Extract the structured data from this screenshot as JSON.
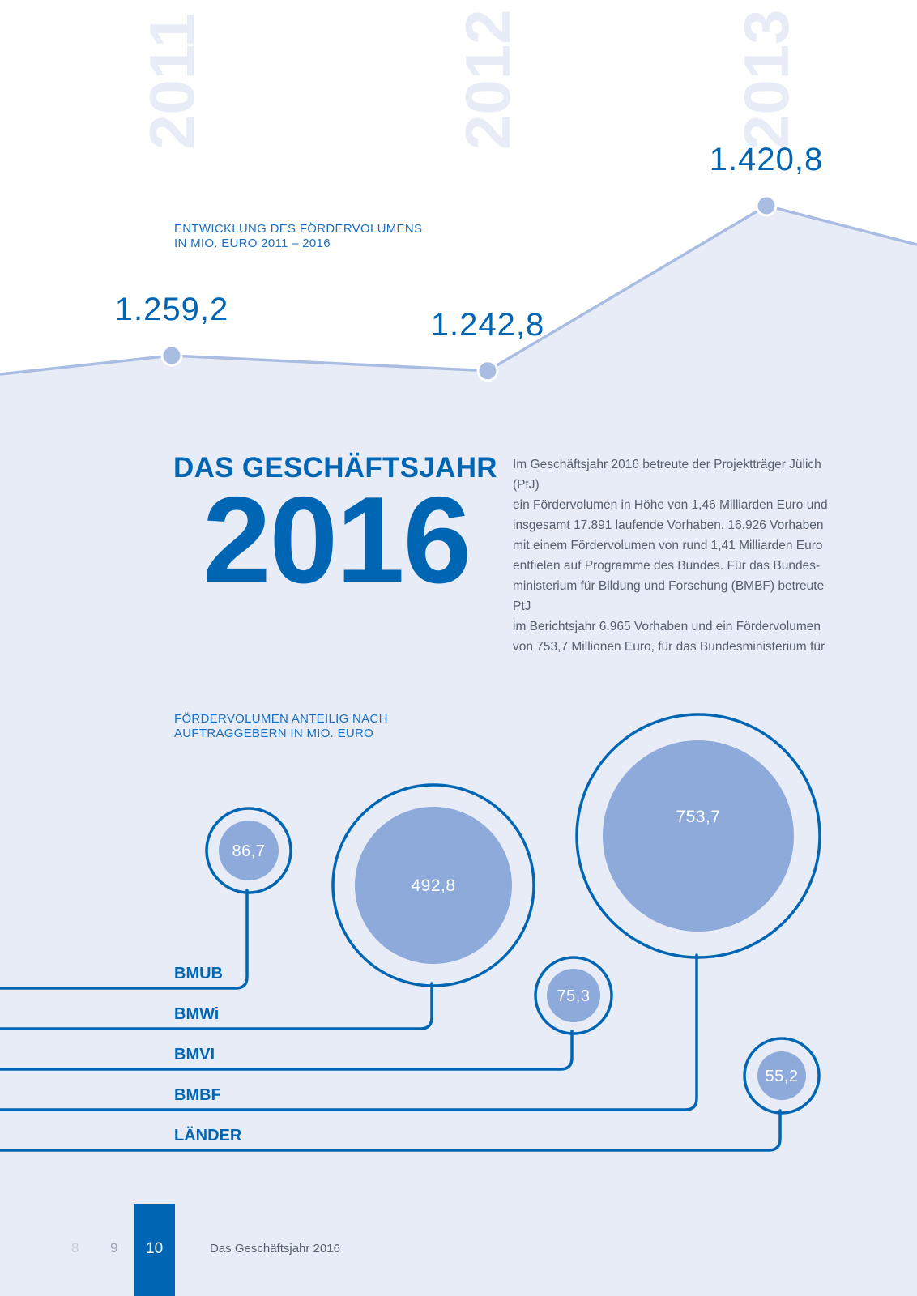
{
  "colors": {
    "accent": "#0066b3",
    "area_fill": "#e8ecf7",
    "line": "#a9bde3",
    "bubble_fill": "#8daadb",
    "year_watermark": "#e8ecf7",
    "footer_active": "#0066b3"
  },
  "volume_section": {
    "title_line1": "ENTWICKLUNG DES FÖRDERVOLUMENS",
    "title_line2": "IN MIO. EURO 2011 – 2016"
  },
  "chart_data": [
    {
      "type": "area",
      "title": "ENTWICKLUNG DES FÖRDERVOLUMENS IN MIO. EURO 2011 – 2016",
      "categories": [
        "2011",
        "2012",
        "2013"
      ],
      "values": [
        1259.2,
        1242.8,
        1420.8
      ],
      "value_labels": [
        "1.259,2",
        "1.242,8",
        "1.420,8"
      ]
    },
    {
      "type": "bubble",
      "title": "FÖRDERVOLUMEN ANTEILIG NACH AUFTRAGGEBERN IN MIO. EURO",
      "categories": [
        "BMUB",
        "BMWi",
        "BMVI",
        "BMBF",
        "LÄNDER"
      ],
      "values": [
        86.7,
        492.8,
        75.3,
        753.7,
        55.2
      ],
      "value_labels": [
        "86,7",
        "492,8",
        "75,3",
        "753,7",
        "55,2"
      ]
    }
  ],
  "heading": {
    "line1": "DAS GESCHÄFTSJAHR",
    "year": "2016"
  },
  "intro_lines": [
    "Im Geschäftsjahr 2016 betreute der Projektträger Jülich (PtJ)",
    "ein Fördervolumen in Höhe von 1,46 Milliarden Euro und",
    "insgesamt 17.891 laufende Vorhaben. 16.926 Vorhaben",
    "mit einem Fördervolumen von rund 1,41 Milliarden Euro",
    "entfielen auf Programme des Bundes. Für das Bundes-",
    "ministerium für Bildung und Forschung (BMBF) betreute PtJ",
    "im Berichtsjahr 6.965 Vorhaben und ein Fördervolumen",
    "von 753,7 Millionen Euro, für das Bundesministerium für"
  ],
  "share_section": {
    "title_line1": "FÖRDERVOLUMEN ANTEILIG NACH",
    "title_line2": "AUFTRAGGEBERN IN MIO. EURO"
  },
  "footer": {
    "pages": [
      "8",
      "9",
      "10"
    ],
    "active_page": "10",
    "section_title": "Das Geschäftsjahr 2016"
  }
}
